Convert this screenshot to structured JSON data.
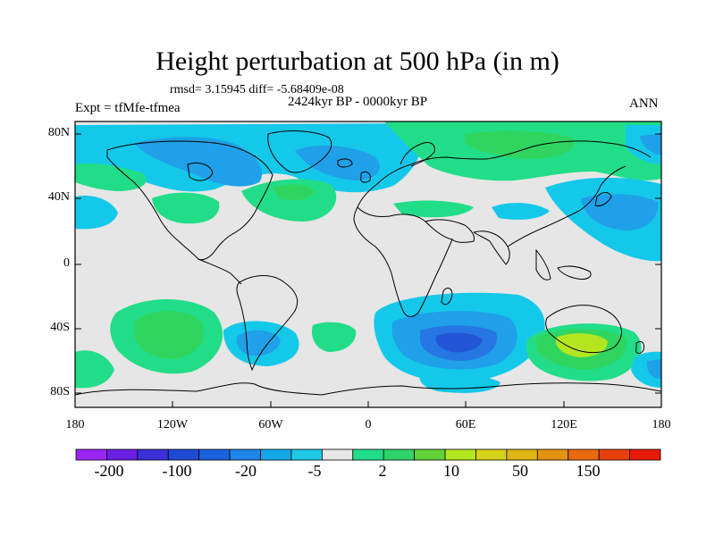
{
  "title": "Height perturbation at 500 hPa (in m)",
  "stats": "rmsd= 3.15945 diff= -5.68409e-08",
  "period": "2424kyr BP - 0000kyr BP",
  "experiment": "Expt = tfMfe-tfmea",
  "season": "ANN",
  "axes": {
    "x_ticks": [
      "180",
      "120W",
      "60W",
      "0",
      "60E",
      "120E",
      "180"
    ],
    "y_ticks": [
      "80N",
      "40N",
      "0",
      "40S",
      "80S"
    ]
  },
  "colorbar": {
    "labels": [
      "-200",
      "-100",
      "-20",
      "-5",
      "2",
      "10",
      "50",
      "150"
    ],
    "colors": [
      "#9b26f4",
      "#6a1fe3",
      "#3b2fd9",
      "#1f4ad4",
      "#1a62e0",
      "#1f86e8",
      "#14a8e8",
      "#1ec8e6",
      "#e6e6e6",
      "#22dd88",
      "#2ed36a",
      "#60d23a",
      "#b2e61e",
      "#d7d21a",
      "#e0b414",
      "#e49212",
      "#e86a0e",
      "#e8400a",
      "#e81a0a"
    ]
  },
  "colors": {
    "neutral": "#e6e6e6",
    "cyan": "#14c8ea",
    "light_blue": "#1fa0e8",
    "blue": "#2676e3",
    "deep_blue": "#2256d6",
    "green": "#22dd88",
    "mid_green": "#30d560",
    "yellow_green": "#b4e620",
    "coast": "#000000"
  }
}
